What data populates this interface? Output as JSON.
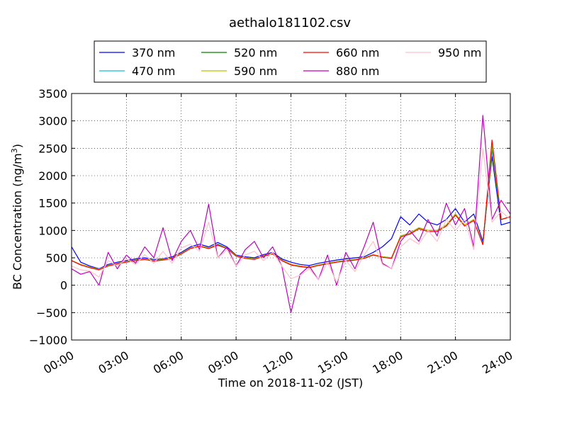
{
  "chart_data": {
    "type": "line",
    "title": "aethalo181102.csv",
    "xlabel": "Time on 2018-11-02 (JST)",
    "ylabel_main": "BC Concentration (ng/m",
    "ylabel_sup": "3",
    "ylabel_close": ")",
    "xlim_hours": [
      0,
      24
    ],
    "ylim": [
      -1000,
      3500
    ],
    "xtick_labels": [
      "00:00",
      "03:00",
      "06:00",
      "09:00",
      "12:00",
      "15:00",
      "18:00",
      "21:00",
      "24:00"
    ],
    "ytick_labels": [
      "3500",
      "3000",
      "2500",
      "2000",
      "1500",
      "1000",
      "500",
      "0",
      "−500",
      "−1000"
    ],
    "yticks": [
      3500,
      3000,
      2500,
      2000,
      1500,
      1000,
      500,
      0,
      -500,
      -1000
    ],
    "grid": true,
    "legend_position": "top, above plot",
    "x_hours": [
      0.0,
      0.5,
      1.0,
      1.5,
      2.0,
      2.5,
      3.0,
      3.5,
      4.0,
      4.5,
      5.0,
      5.5,
      6.0,
      6.5,
      7.0,
      7.5,
      8.0,
      8.5,
      9.0,
      9.5,
      10.0,
      10.5,
      11.0,
      11.5,
      12.0,
      12.5,
      13.0,
      13.5,
      14.0,
      14.5,
      15.0,
      15.5,
      16.0,
      16.5,
      17.0,
      17.5,
      18.0,
      18.5,
      19.0,
      19.5,
      20.0,
      20.5,
      21.0,
      21.5,
      22.0,
      22.5,
      23.0,
      23.5,
      24.0
    ],
    "series": [
      {
        "name": "370 nm",
        "color": "#0000ff",
        "values": [
          700,
          420,
          350,
          300,
          380,
          420,
          450,
          480,
          500,
          470,
          480,
          520,
          600,
          700,
          750,
          700,
          780,
          700,
          550,
          520,
          500,
          560,
          600,
          480,
          420,
          380,
          360,
          400,
          430,
          460,
          480,
          500,
          520,
          600,
          700,
          850,
          1250,
          1100,
          1300,
          1150,
          1100,
          1200,
          1400,
          1150,
          1300,
          800,
          2350,
          1100,
          1150
        ]
      },
      {
        "name": "470 nm",
        "color": "#17becf",
        "values": [
          450,
          380,
          330,
          290,
          360,
          400,
          430,
          460,
          480,
          450,
          470,
          500,
          580,
          680,
          720,
          680,
          750,
          680,
          540,
          500,
          480,
          540,
          580,
          460,
          380,
          350,
          330,
          370,
          400,
          430,
          450,
          470,
          500,
          560,
          520,
          500,
          900,
          950,
          1050,
          1000,
          1000,
          1100,
          1300,
          1100,
          1200,
          750,
          2450,
          1200,
          1250
        ]
      },
      {
        "name": "520 nm",
        "color": "#008000",
        "values": [
          450,
          380,
          330,
          290,
          360,
          400,
          430,
          460,
          480,
          450,
          470,
          500,
          580,
          680,
          720,
          680,
          740,
          680,
          540,
          500,
          480,
          540,
          580,
          460,
          380,
          350,
          330,
          370,
          400,
          430,
          450,
          470,
          500,
          560,
          520,
          500,
          900,
          950,
          1050,
          1000,
          1000,
          1100,
          1300,
          1100,
          1200,
          750,
          2500,
          1200,
          1250
        ]
      },
      {
        "name": "590 nm",
        "color": "#bfbf00",
        "values": [
          450,
          380,
          330,
          290,
          360,
          400,
          430,
          460,
          480,
          450,
          470,
          500,
          580,
          680,
          720,
          680,
          730,
          680,
          540,
          500,
          480,
          540,
          580,
          460,
          380,
          350,
          330,
          370,
          400,
          430,
          450,
          470,
          500,
          560,
          520,
          500,
          900,
          950,
          1050,
          1000,
          1000,
          1100,
          1300,
          1100,
          1200,
          750,
          2550,
          1200,
          1250
        ]
      },
      {
        "name": "660 nm",
        "color": "#ff0000",
        "values": [
          450,
          370,
          320,
          280,
          350,
          390,
          420,
          450,
          470,
          440,
          460,
          490,
          570,
          670,
          710,
          670,
          730,
          670,
          530,
          490,
          470,
          530,
          570,
          450,
          370,
          340,
          320,
          360,
          390,
          420,
          440,
          460,
          490,
          550,
          510,
          490,
          880,
          930,
          1030,
          980,
          980,
          1080,
          1280,
          1080,
          1180,
          740,
          2650,
          1200,
          1250
        ]
      },
      {
        "name": "880 nm",
        "color": "#bf00bf",
        "values": [
          300,
          200,
          250,
          0,
          600,
          300,
          550,
          400,
          700,
          500,
          1050,
          450,
          800,
          1000,
          650,
          1480,
          500,
          700,
          350,
          650,
          800,
          500,
          700,
          350,
          -500,
          200,
          350,
          100,
          550,
          0,
          600,
          300,
          700,
          1150,
          400,
          300,
          800,
          1000,
          800,
          1200,
          900,
          1500,
          1100,
          1400,
          700,
          3100,
          1200,
          1550,
          1300
        ]
      },
      {
        "name": "950 nm",
        "color": "#ffc0cb",
        "values": [
          350,
          280,
          260,
          150,
          450,
          350,
          480,
          380,
          560,
          400,
          620,
          400,
          680,
          750,
          620,
          1150,
          500,
          650,
          350,
          550,
          620,
          450,
          600,
          350,
          120,
          180,
          300,
          100,
          420,
          50,
          450,
          250,
          550,
          800,
          380,
          300,
          700,
          850,
          750,
          1000,
          800,
          1200,
          1000,
          1200,
          650,
          2500,
          1150,
          1350,
          1200
        ]
      }
    ]
  }
}
